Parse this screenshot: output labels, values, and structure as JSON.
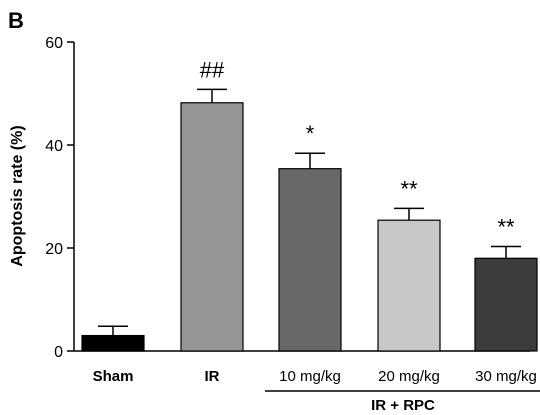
{
  "panel_label": "B",
  "chart_data": {
    "type": "bar",
    "ylabel": "Apoptosis rate (%)",
    "xlabel": "",
    "ylim": [
      0,
      60
    ],
    "yticks": [
      0,
      20,
      40,
      60
    ],
    "categories": [
      "Sham",
      "IR",
      "10 mg/kg",
      "20 mg/kg",
      "30 mg/kg"
    ],
    "values": [
      3.0,
      48.2,
      35.4,
      25.4,
      18.0
    ],
    "errors": [
      1.8,
      2.6,
      3.0,
      2.3,
      2.3
    ],
    "significance": [
      "",
      "##",
      "*",
      "**",
      "**"
    ],
    "bar_colors": [
      "#000000",
      "#969696",
      "#686868",
      "#c8c8c8",
      "#3c3c3c"
    ],
    "bold_categories": [
      "Sham",
      "IR"
    ],
    "group": {
      "label": "IR + RPC",
      "from": 2,
      "to": 4
    },
    "grid": false
  }
}
